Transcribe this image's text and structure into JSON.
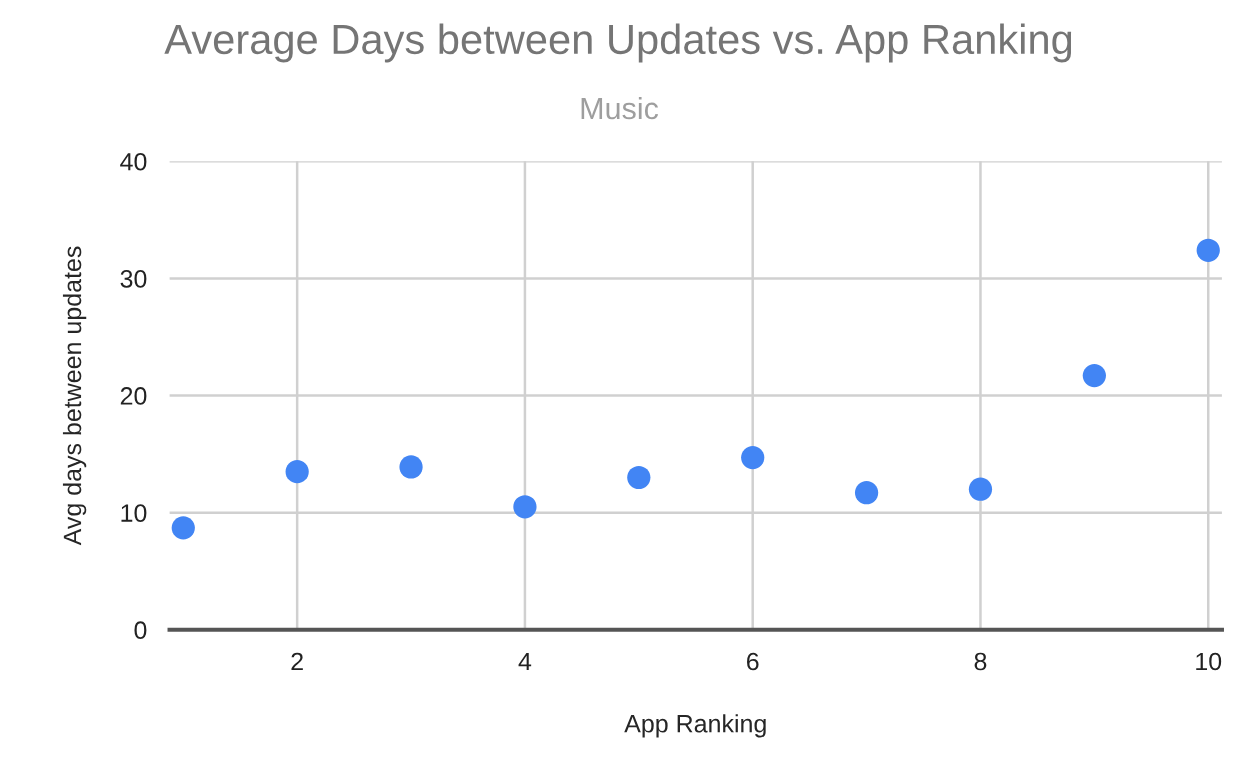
{
  "chart_data": {
    "type": "scatter",
    "title": "Average Days between Updates vs. App Ranking",
    "subtitle": "Music",
    "xlabel": "App Ranking",
    "ylabel": "Avg days between updates",
    "x": [
      1,
      2,
      3,
      4,
      5,
      6,
      7,
      8,
      9,
      10
    ],
    "series": [
      {
        "color": "#4285f4",
        "values": [
          8.7,
          13.5,
          13.9,
          10.5,
          13.0,
          14.7,
          11.7,
          12.0,
          21.7,
          32.4
        ]
      }
    ],
    "xlim": [
      0.88,
      10.12
    ],
    "xticks": [
      2,
      4,
      6,
      8,
      10
    ],
    "ylim": [
      0,
      40
    ],
    "yticks": [
      0,
      10,
      20,
      30,
      40
    ],
    "grid": true,
    "legend": false,
    "marker": "circle"
  }
}
